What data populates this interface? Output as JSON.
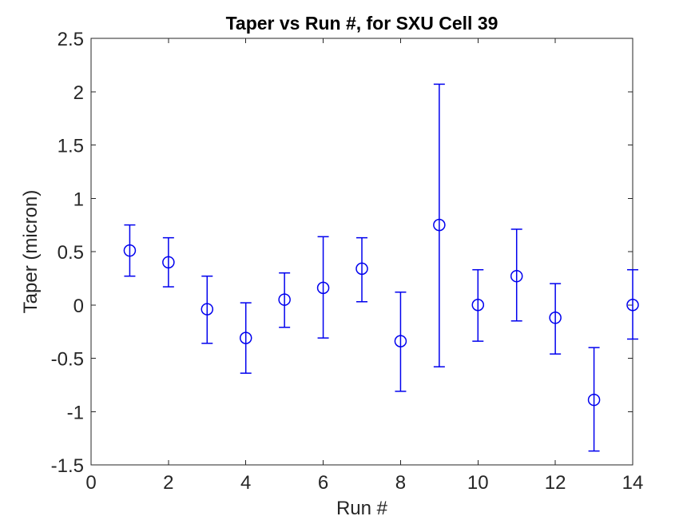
{
  "figure": {
    "background": "#ffffff"
  },
  "chart_data": {
    "type": "scatter",
    "subtype": "errorbar",
    "title": "Taper vs Run #, for SXU Cell 39",
    "xlabel": "Run #",
    "ylabel": "Taper (micron)",
    "xlim": [
      0,
      14
    ],
    "ylim": [
      -1.5,
      2.5
    ],
    "xticks": [
      0,
      2,
      4,
      6,
      8,
      10,
      12,
      14
    ],
    "xtick_labels": [
      "0",
      "2",
      "4",
      "6",
      "8",
      "10",
      "12",
      "14"
    ],
    "yticks": [
      -1.5,
      -1,
      -0.5,
      0,
      0.5,
      1,
      1.5,
      2,
      2.5
    ],
    "ytick_labels": [
      "-1.5",
      "-1",
      "-0.5",
      "0",
      "0.5",
      "1",
      "1.5",
      "2",
      "2.5"
    ],
    "grid": false,
    "legend": "none",
    "marker": "open-circle",
    "series": [
      {
        "name": "Taper",
        "x": [
          1,
          2,
          3,
          4,
          5,
          6,
          7,
          8,
          9,
          10,
          11,
          12,
          13,
          14
        ],
        "y": [
          0.51,
          0.4,
          -0.04,
          -0.31,
          0.05,
          0.16,
          0.34,
          -0.34,
          0.75,
          0.0,
          0.27,
          -0.12,
          -0.89,
          0.0
        ],
        "y_lower": [
          0.27,
          0.17,
          -0.36,
          -0.64,
          -0.21,
          -0.31,
          0.03,
          -0.81,
          -0.58,
          -0.34,
          -0.15,
          -0.46,
          -1.37,
          -0.32
        ],
        "y_upper": [
          0.75,
          0.63,
          0.27,
          0.02,
          0.3,
          0.64,
          0.63,
          0.12,
          2.07,
          0.33,
          0.71,
          0.2,
          -0.4,
          0.33
        ]
      }
    ],
    "colors": {
      "series": "#0000EE",
      "axis": "#262626",
      "title": "#000000",
      "background": "#ffffff"
    }
  }
}
